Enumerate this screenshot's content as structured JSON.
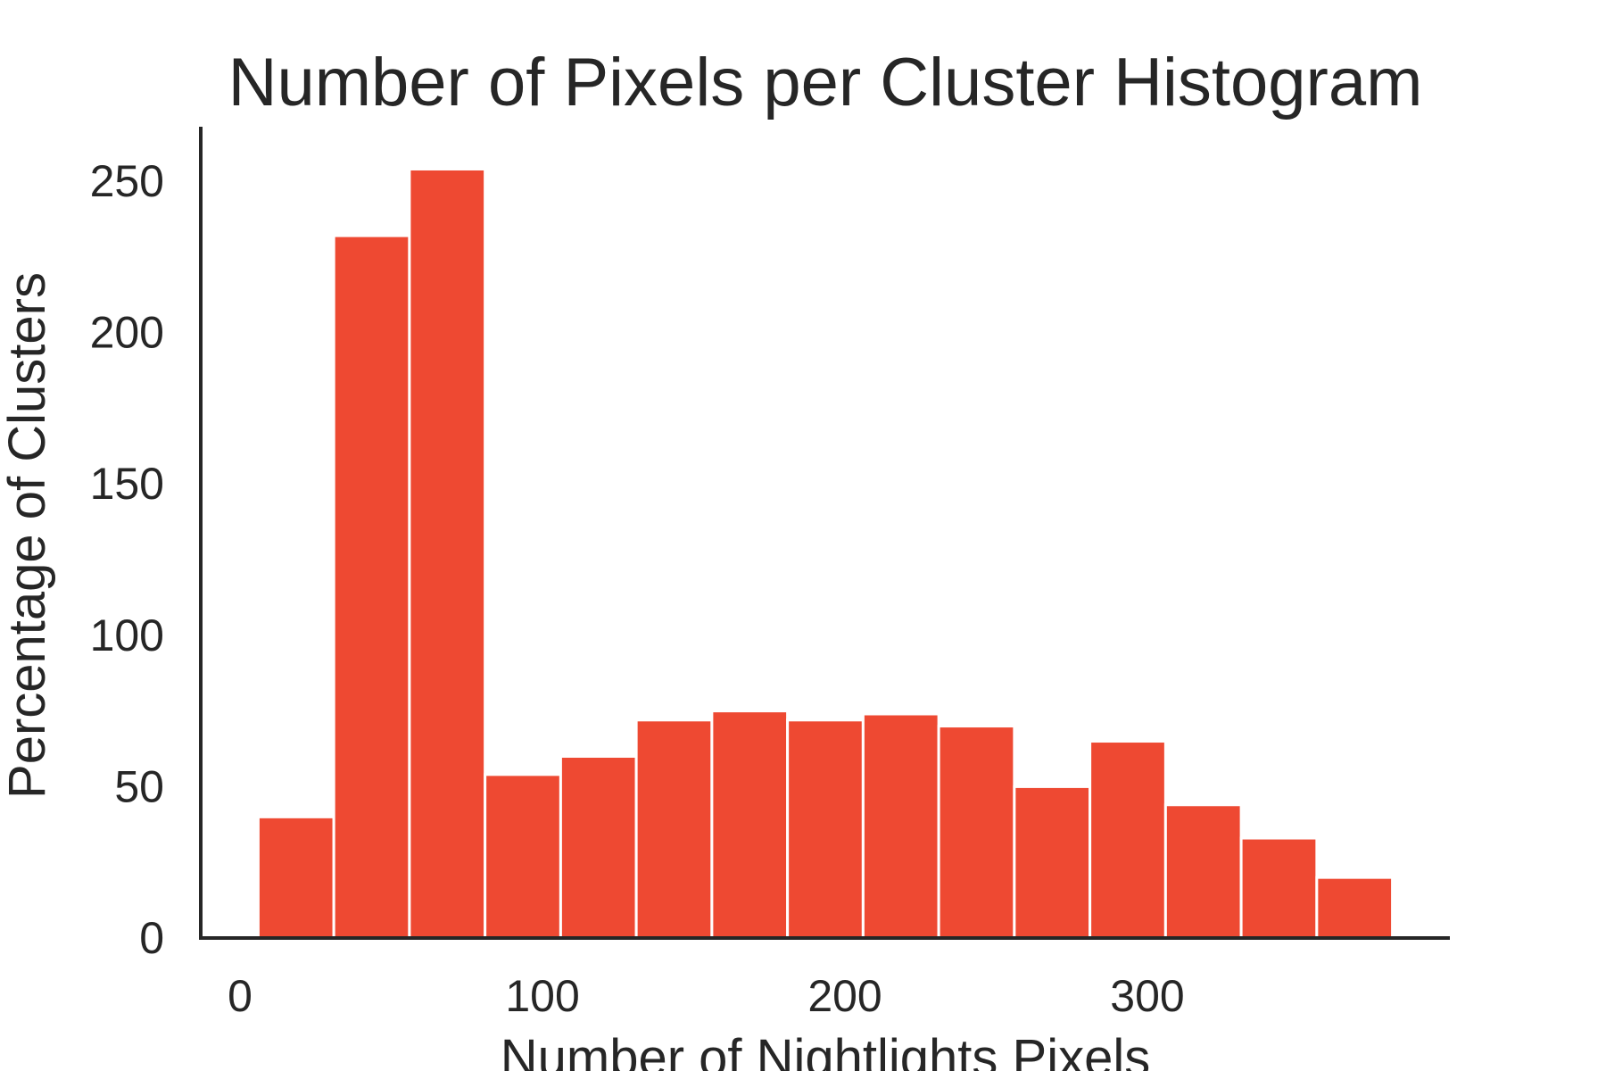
{
  "chart_data": {
    "type": "bar",
    "subtype": "histogram",
    "title": "Number of Pixels per Cluster Histogram",
    "xlabel": "Number of Nightlights Pixels",
    "ylabel": "Percentage of Clusters",
    "xlim": [
      -13,
      400
    ],
    "ylim": [
      0,
      268
    ],
    "x_ticks": [
      0,
      100,
      200,
      300
    ],
    "y_ticks": [
      0,
      50,
      100,
      150,
      200,
      250
    ],
    "bin_edges": [
      6,
      31,
      56,
      81,
      106,
      131,
      156,
      181,
      206,
      231,
      256,
      281,
      306,
      331,
      356,
      381
    ],
    "values": [
      40,
      232,
      254,
      54,
      60,
      72,
      75,
      72,
      74,
      70,
      50,
      65,
      44,
      33,
      20
    ],
    "bar_color": "#EE4932",
    "grid": false,
    "legend": "none"
  }
}
